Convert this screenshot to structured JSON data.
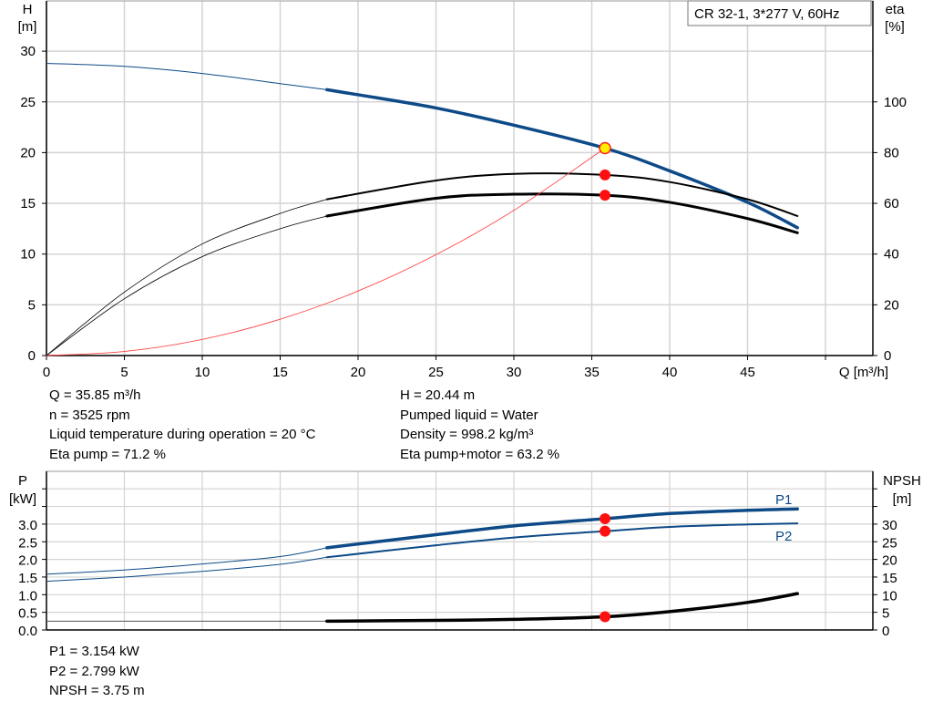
{
  "chart_data": [
    {
      "type": "line",
      "title": "CR 32-1, 3*277 V, 60Hz",
      "xlabel": "Q [m³/h]",
      "ylabel_left": [
        "H",
        "[m]"
      ],
      "ylabel_right": [
        "eta",
        "[%]"
      ],
      "xlim": [
        0,
        53
      ],
      "ylim_left": [
        0,
        35
      ],
      "ylim_right": [
        0,
        140
      ],
      "x_ticks": [
        "0",
        "5",
        "10",
        "15",
        "20",
        "25",
        "30",
        "35",
        "40",
        "45"
      ],
      "y_ticks_left": [
        "0",
        "5",
        "10",
        "15",
        "20",
        "25",
        "30"
      ],
      "y_ticks_right": [
        "0",
        "20",
        "40",
        "60",
        "80",
        "100"
      ],
      "grid": true,
      "operating_range_start_q": 18,
      "series": [
        {
          "id": "H",
          "axis": "left",
          "color": "#0d4a87",
          "x": [
            0,
            5,
            10,
            15,
            18,
            20,
            25,
            30,
            35.85,
            40,
            45,
            48.2
          ],
          "y": [
            28.8,
            28.5,
            27.8,
            26.8,
            26.2,
            25.7,
            24.4,
            22.7,
            20.44,
            18.2,
            15.1,
            12.6
          ]
        },
        {
          "id": "eta_pump",
          "axis": "right",
          "color": "#000000",
          "x": [
            0,
            5,
            10,
            15,
            18,
            25,
            30,
            35.85,
            40,
            45,
            48.2
          ],
          "y": [
            0,
            25,
            44,
            56,
            61.6,
            69,
            71.6,
            71.2,
            68.4,
            61.6,
            55
          ]
        },
        {
          "id": "eta_pump_motor",
          "axis": "right",
          "color": "#000000",
          "x": [
            0,
            5,
            10,
            15,
            18,
            25,
            30,
            35.85,
            40,
            45,
            48.2
          ],
          "y": [
            0,
            22.4,
            39,
            50,
            55,
            62,
            63.6,
            63.2,
            60.4,
            54,
            48.4
          ]
        },
        {
          "id": "system",
          "axis": "left",
          "color": "#ff4444",
          "x": [
            0,
            5,
            10,
            15,
            20,
            25,
            30,
            35.85
          ],
          "y": [
            0,
            0.4,
            1.59,
            3.58,
            6.36,
            9.94,
            14.31,
            20.44
          ]
        }
      ],
      "markers": [
        {
          "series": "H",
          "x": 35.85,
          "y": 20.44,
          "fill": "#ffee00",
          "stroke": "#ff2020"
        },
        {
          "series": "eta_pump",
          "x": 35.85,
          "y": 71.2,
          "fill": "#ff1010"
        },
        {
          "series": "eta_pump_motor",
          "x": 35.85,
          "y": 63.2,
          "fill": "#ff1010"
        }
      ]
    },
    {
      "type": "line",
      "ylabel_left": [
        "P",
        "[kW]"
      ],
      "ylabel_right": [
        "NPSH",
        "[m]"
      ],
      "xlim": [
        0,
        53
      ],
      "ylim_left": [
        0,
        4.5
      ],
      "ylim_right": [
        0,
        45
      ],
      "y_ticks_left": [
        "0.0",
        "0.5",
        "1.0",
        "1.5",
        "2.0",
        "2.5",
        "3.0"
      ],
      "y_ticks_right": [
        "0",
        "5",
        "10",
        "15",
        "20",
        "25",
        "30"
      ],
      "grid": true,
      "series": [
        {
          "name": "P1",
          "axis": "left",
          "color": "#0d4a87",
          "x": [
            0,
            5,
            10,
            15,
            18,
            25,
            30,
            35.85,
            40,
            45,
            48.2
          ],
          "y": [
            1.58,
            1.7,
            1.87,
            2.08,
            2.33,
            2.7,
            2.95,
            3.154,
            3.3,
            3.39,
            3.43
          ]
        },
        {
          "name": "P2",
          "axis": "left",
          "color": "#0d4a87",
          "x": [
            0,
            5,
            10,
            15,
            18,
            25,
            30,
            35.85,
            40,
            45,
            48.2
          ],
          "y": [
            1.38,
            1.5,
            1.66,
            1.86,
            2.06,
            2.4,
            2.62,
            2.799,
            2.92,
            2.99,
            3.02
          ]
        },
        {
          "id": "NPSH",
          "axis": "right",
          "color": "#000000",
          "x": [
            0,
            10,
            18,
            25,
            30,
            35.85,
            40,
            45,
            48.2
          ],
          "y": [
            2.5,
            2.5,
            2.5,
            2.7,
            3.0,
            3.75,
            5.2,
            7.8,
            10.3
          ]
        }
      ],
      "markers": [
        {
          "series": "P1",
          "x": 35.85,
          "y": 3.154
        },
        {
          "series": "P2",
          "x": 35.85,
          "y": 2.799
        },
        {
          "series": "NPSH",
          "x": 35.85,
          "y": 3.75
        }
      ]
    }
  ],
  "info_top_left": [
    "Q = 35.85 m³/h",
    "n = 3525 rpm",
    "Liquid temperature during operation = 20 °C",
    "Eta pump = 71.2 %"
  ],
  "info_top_right": [
    "H = 20.44 m",
    "Pumped liquid = Water",
    "Density = 998.2 kg/m³",
    "Eta pump+motor = 63.2 %"
  ],
  "info_bottom": [
    "P1 = 3.154 kW",
    "P2 = 2.799 kW",
    "NPSH = 3.75 m"
  ]
}
